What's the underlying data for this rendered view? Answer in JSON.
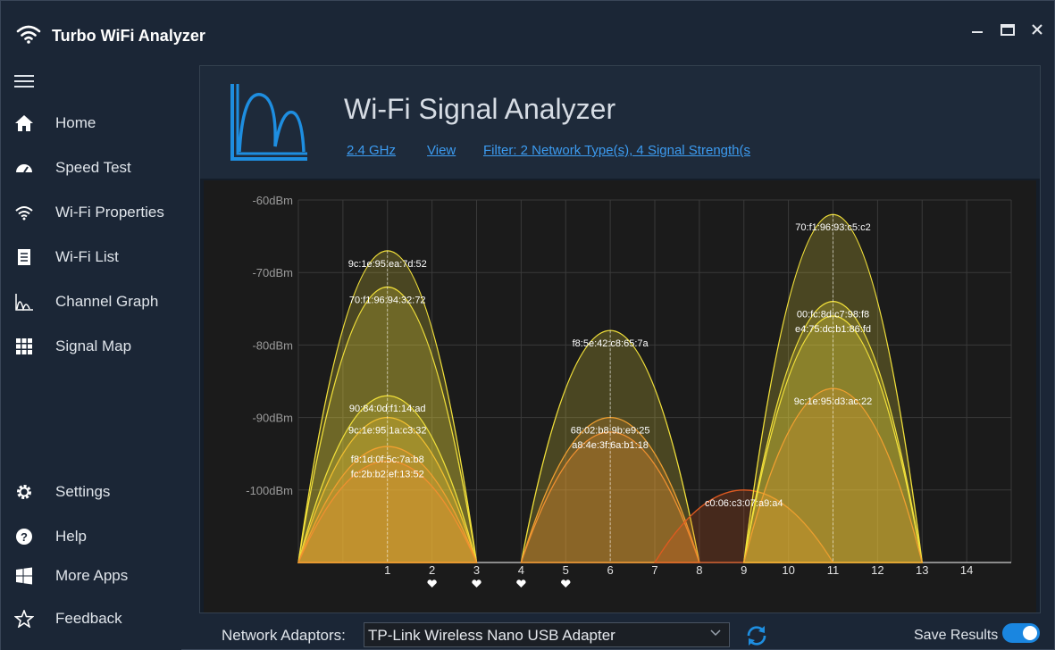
{
  "app": {
    "title": "Turbo WiFi Analyzer"
  },
  "sidebar": {
    "items": [
      {
        "label": "Home",
        "icon": "home-icon"
      },
      {
        "label": "Speed Test",
        "icon": "speedometer-icon"
      },
      {
        "label": "Wi-Fi Properties",
        "icon": "wifi-icon"
      },
      {
        "label": "Wi-Fi List",
        "icon": "list-icon"
      },
      {
        "label": "Channel Graph",
        "icon": "channel-graph-icon"
      },
      {
        "label": "Signal Map",
        "icon": "grid-icon"
      }
    ],
    "bottom_items": [
      {
        "label": "Settings",
        "icon": "gear-icon"
      },
      {
        "label": "Help",
        "icon": "help-icon"
      },
      {
        "label": "More Apps",
        "icon": "windows-icon"
      },
      {
        "label": "Feedback",
        "icon": "star-icon"
      }
    ]
  },
  "header": {
    "title": "Wi-Fi Signal Analyzer",
    "band_link": "2.4 GHz",
    "view_link": "View",
    "filter_link": "Filter: 2 Network Type(s), 4 Signal Strength(s"
  },
  "chart_data": {
    "type": "area",
    "x_ticks": [
      "1",
      "2",
      "3",
      "4",
      "5",
      "6",
      "7",
      "8",
      "9",
      "10",
      "11",
      "12",
      "13",
      "14"
    ],
    "y_ticks": [
      "-60dBm",
      "-70dBm",
      "-80dBm",
      "-90dBm",
      "-100dBm"
    ],
    "ylim": [
      -110,
      -60
    ],
    "xlim": [
      -1,
      15
    ],
    "grid": true,
    "heart_channels": [
      2,
      3,
      4,
      5
    ],
    "series": [
      {
        "name": "9c:1e:95:ea:7d:52",
        "channel": 1,
        "dbm": -67,
        "color": "#f2e13a"
      },
      {
        "name": "70:f1:96:94:32:72",
        "channel": 1,
        "dbm": -72,
        "color": "#f2e13a"
      },
      {
        "name": "90:84:0d:f1:14:ad",
        "channel": 1,
        "dbm": -87,
        "color": "#f2e13a"
      },
      {
        "name": "9c:1e:95:1a:c3:32",
        "channel": 1,
        "dbm": -90,
        "color": "#f2c030"
      },
      {
        "name": "f8:1d:0f:5c:7a:b8",
        "channel": 1,
        "dbm": -94,
        "color": "#f2a030"
      },
      {
        "name": "fc:2b:b2:ef:13:52",
        "channel": 1,
        "dbm": -96,
        "color": "#f09030"
      },
      {
        "name": "f8:5e:42:c8:65:7a",
        "channel": 6,
        "dbm": -78,
        "color": "#f2e13a"
      },
      {
        "name": "68:02:b8:9b:e9:25",
        "channel": 6,
        "dbm": -90,
        "color": "#f2a030"
      },
      {
        "name": "a8:4e:3f:6a:b1:18",
        "channel": 6,
        "dbm": -92,
        "color": "#f09030"
      },
      {
        "name": "c0:06:c3:07:a9:a4",
        "channel": 9,
        "dbm": -100,
        "color": "#e05a20"
      },
      {
        "name": "70:f1:96:93:c5:c2",
        "channel": 11,
        "dbm": -62,
        "color": "#f2e13a"
      },
      {
        "name": "00:fc:8d:c7:98:f8",
        "channel": 11,
        "dbm": -74,
        "color": "#f2e13a"
      },
      {
        "name": "e4:75:dc:b1:86:fd",
        "channel": 11,
        "dbm": -76,
        "color": "#f2e13a"
      },
      {
        "name": "9c:1e:95:d3:ac:22",
        "channel": 11,
        "dbm": -86,
        "color": "#f2a030"
      }
    ]
  },
  "footer": {
    "adapter_label": "Network Adaptors:",
    "adapter_value": "TP-Link Wireless Nano USB Adapter",
    "save_label": "Save Results",
    "save_enabled": true
  },
  "colors": {
    "accent": "#1a86e0",
    "link": "#3c9bf0"
  }
}
